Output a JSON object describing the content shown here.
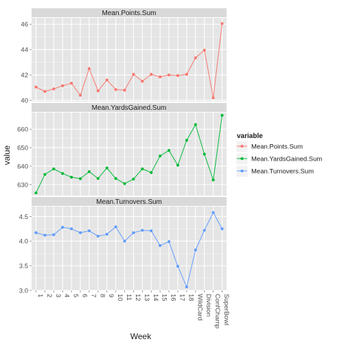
{
  "chart_data": {
    "type": "line",
    "xlabel": "Week",
    "ylabel": "value",
    "categories": [
      "1",
      "2",
      "3",
      "4",
      "5",
      "6",
      "7",
      "8",
      "9",
      "10",
      "11",
      "12",
      "13",
      "14",
      "15",
      "16",
      "17",
      "18",
      "WildCard",
      "Division",
      "ConfChamp",
      "SuperBowl"
    ],
    "legend": {
      "title": "variable",
      "position": "right",
      "entries": [
        "Mean.Points.Sum",
        "Mean.YardsGained.Sum",
        "Mean.Turnovers.Sum"
      ]
    },
    "panels": [
      {
        "strip": "Mean.Points.Sum",
        "color": "#F8766D",
        "ylim": [
          39.9,
          46.5
        ],
        "yticks": [
          40,
          42,
          44,
          46
        ],
        "values": [
          41.05,
          40.7,
          40.9,
          41.15,
          41.35,
          40.4,
          42.5,
          40.75,
          41.6,
          40.85,
          40.8,
          42.05,
          41.5,
          42.05,
          41.85,
          42.0,
          41.95,
          42.05,
          43.35,
          43.95,
          40.2,
          46.05
        ]
      },
      {
        "strip": "Mean.YardsGained.Sum",
        "color": "#00BA38",
        "ylim": [
          624,
          669
        ],
        "yticks": [
          630,
          640,
          650,
          660
        ],
        "values": [
          625.5,
          635.5,
          638.5,
          636.0,
          634.0,
          633.2,
          637.0,
          633.3,
          639.0,
          633.3,
          630.5,
          633.0,
          638.5,
          636.5,
          645.5,
          648.5,
          640.5,
          654.0,
          662.5,
          646.5,
          632.5,
          667.5
        ]
      },
      {
        "strip": "Mean.Turnovers.Sum",
        "color": "#619CFF",
        "ylim": [
          3.0,
          4.7
        ],
        "yticks": [
          3.0,
          3.5,
          4.0,
          4.5
        ],
        "ytick_labels": [
          "3.0",
          "3.5",
          "4.0",
          "4.5"
        ],
        "values": [
          4.17,
          4.12,
          4.13,
          4.28,
          4.25,
          4.17,
          4.21,
          4.1,
          4.14,
          4.29,
          4.0,
          4.17,
          4.22,
          4.21,
          3.91,
          3.99,
          3.49,
          3.07,
          3.82,
          4.22,
          4.58,
          4.25
        ]
      }
    ]
  }
}
